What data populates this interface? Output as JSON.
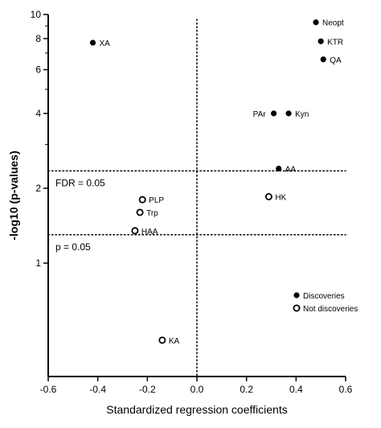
{
  "chart_data": {
    "type": "scatter",
    "xlabel": "Standardized regression coefficients",
    "ylabel": "-log10 (p-values)",
    "xlim": [
      -0.6,
      0.6
    ],
    "ylim": [
      0.35,
      10
    ],
    "y_scale": "log",
    "x_ticks": [
      "-0.6",
      "-0.4",
      "-0.2",
      "0.0",
      "0.2",
      "0.4",
      "0.6"
    ],
    "y_ticks": [
      "1",
      "2",
      "4",
      "6",
      "8",
      "10"
    ],
    "reference_lines": [
      {
        "label": "FDR = 0.05",
        "y": 2.35,
        "orientation": "horizontal",
        "style": "dotted"
      },
      {
        "label": "p = 0.05",
        "y": 1.301,
        "orientation": "horizontal",
        "style": "dotted"
      },
      {
        "x": 0.0,
        "orientation": "vertical",
        "style": "dotted"
      }
    ],
    "series": [
      {
        "name": "Discoveries",
        "marker": "filled-circle",
        "color": "#000000",
        "points": [
          {
            "label": "Neopt",
            "x": 0.48,
            "y": 9.3
          },
          {
            "label": "KTR",
            "x": 0.5,
            "y": 7.8
          },
          {
            "label": "QA",
            "x": 0.51,
            "y": 6.6
          },
          {
            "label": "XA",
            "x": -0.42,
            "y": 7.7
          },
          {
            "label": "PAr",
            "x": 0.31,
            "y": 4.0
          },
          {
            "label": "Kyn",
            "x": 0.37,
            "y": 4.0
          },
          {
            "label": "AA",
            "x": 0.33,
            "y": 2.4
          }
        ]
      },
      {
        "name": "Not discoveries",
        "marker": "open-circle",
        "color": "#000000",
        "points": [
          {
            "label": "HK",
            "x": 0.29,
            "y": 1.85
          },
          {
            "label": "PLP",
            "x": -0.22,
            "y": 1.8
          },
          {
            "label": "Trp",
            "x": -0.23,
            "y": 1.6
          },
          {
            "label": "HAA",
            "x": -0.25,
            "y": 1.35
          },
          {
            "label": "KA",
            "x": -0.14,
            "y": 0.49
          }
        ]
      }
    ],
    "legend": {
      "position": "bottom-right",
      "entries": [
        "Discoveries",
        "Not discoveries"
      ]
    }
  }
}
